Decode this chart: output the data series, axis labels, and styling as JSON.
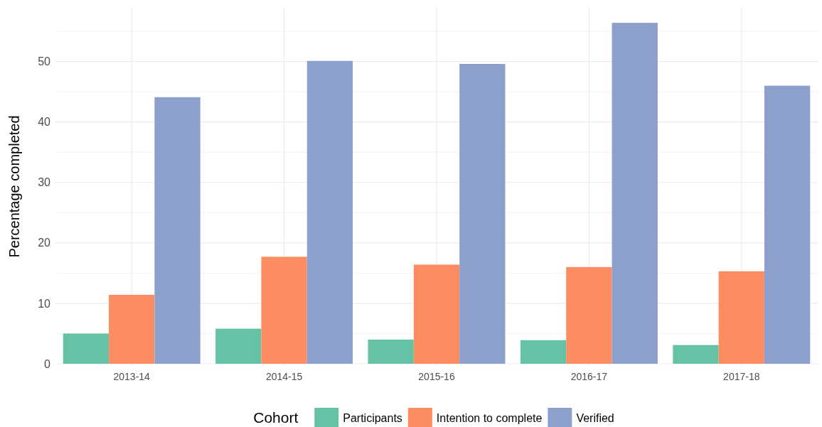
{
  "chart_data": {
    "type": "bar",
    "ylabel": "Percentage completed",
    "legend_title": "Cohort",
    "categories": [
      "2013-14",
      "2014-15",
      "2015-16",
      "2016-17",
      "2017-18"
    ],
    "series": [
      {
        "name": "Participants",
        "color": "#66c2a5",
        "values": [
          5.0,
          5.8,
          4.0,
          3.9,
          3.1
        ]
      },
      {
        "name": "Intention to complete",
        "color": "#fc8d62",
        "values": [
          11.4,
          17.7,
          16.4,
          16.0,
          15.3
        ]
      },
      {
        "name": "Verified",
        "color": "#8da0cb",
        "values": [
          44.1,
          50.1,
          49.6,
          56.4,
          46.0
        ]
      }
    ],
    "ylim": [
      0,
      59
    ],
    "yticks": [
      0,
      {
        "value": 5,
        "label": null
      },
      10,
      {
        "value": 15,
        "label": null
      },
      20,
      {
        "value": 25,
        "label": null
      },
      30,
      {
        "value": 35,
        "label": null
      },
      40,
      {
        "value": 45,
        "label": null
      },
      50,
      {
        "value": 55,
        "label": null
      }
    ],
    "grid": true,
    "legend": "bottom"
  }
}
